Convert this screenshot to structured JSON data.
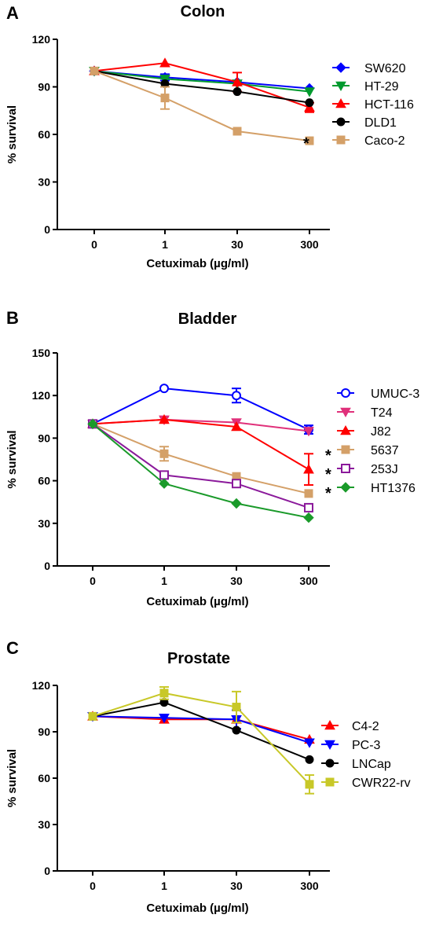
{
  "chart_data": [
    {
      "type": "line",
      "panel_label": "A",
      "title": "Colon",
      "xlabel": "Cetuximab (µg/ml)",
      "ylabel": "% survival",
      "categories": [
        "0",
        "1",
        "30",
        "300"
      ],
      "ylim": [
        0,
        120
      ],
      "yticks": [
        "0",
        "30",
        "60",
        "90",
        "120"
      ],
      "legend_position": "right",
      "series": [
        {
          "name": "SW620",
          "color": "#0000ff",
          "marker": "diamond",
          "values": [
            100,
            96,
            93,
            89
          ],
          "errors": [
            0,
            2,
            0,
            0
          ],
          "star": false
        },
        {
          "name": "HT-29",
          "color": "#009a2e",
          "marker": "triangle-down",
          "values": [
            100,
            95,
            92,
            87
          ],
          "errors": [
            0,
            0,
            0,
            0
          ],
          "star": false
        },
        {
          "name": "HCT-116",
          "color": "#ff0000",
          "marker": "triangle-up",
          "values": [
            100,
            105,
            93,
            77
          ],
          "errors": [
            0,
            0,
            6,
            3
          ],
          "star": false
        },
        {
          "name": "DLD1",
          "color": "#000000",
          "marker": "circle",
          "values": [
            100,
            92,
            87,
            80
          ],
          "errors": [
            0,
            0,
            0,
            0
          ],
          "star": false
        },
        {
          "name": "Caco-2",
          "color": "#d4a068",
          "marker": "square",
          "values": [
            100,
            83,
            62,
            56
          ],
          "errors": [
            0,
            7,
            0,
            0
          ],
          "star": true
        }
      ]
    },
    {
      "type": "line",
      "panel_label": "B",
      "title": "Bladder",
      "xlabel": "Cetuximab (µg/ml)",
      "ylabel": "% survival",
      "categories": [
        "0",
        "1",
        "30",
        "300"
      ],
      "ylim": [
        0,
        150
      ],
      "yticks": [
        "0",
        "30",
        "60",
        "90",
        "120",
        "150"
      ],
      "legend_position": "right",
      "series": [
        {
          "name": "UMUC-3",
          "color": "#0000ff",
          "marker": "circle-open",
          "values": [
            100,
            125,
            120,
            96
          ],
          "errors": [
            0,
            0,
            5,
            3
          ],
          "star": false
        },
        {
          "name": "T24",
          "color": "#e0307a",
          "marker": "triangle-down",
          "values": [
            100,
            103,
            101,
            95
          ],
          "errors": [
            0,
            2,
            0,
            0
          ],
          "star": false
        },
        {
          "name": "J82",
          "color": "#ff0000",
          "marker": "triangle-up",
          "values": [
            100,
            103,
            98,
            68
          ],
          "errors": [
            0,
            0,
            0,
            11
          ],
          "star": false
        },
        {
          "name": "5637",
          "color": "#d4a068",
          "marker": "square",
          "values": [
            100,
            79,
            63,
            51
          ],
          "errors": [
            0,
            5,
            0,
            0
          ],
          "star": true
        },
        {
          "name": "253J",
          "color": "#8b1a9b",
          "marker": "square-open",
          "values": [
            100,
            64,
            58,
            41
          ],
          "errors": [
            0,
            0,
            0,
            0
          ],
          "star": true
        },
        {
          "name": "HT1376",
          "color": "#1a9a2a",
          "marker": "diamond",
          "values": [
            100,
            58,
            44,
            34
          ],
          "errors": [
            0,
            0,
            0,
            0
          ],
          "star": true
        }
      ]
    },
    {
      "type": "line",
      "panel_label": "C",
      "title": "Prostate",
      "xlabel": "Cetuximab (µg/ml)",
      "ylabel": "% survival",
      "categories": [
        "0",
        "1",
        "30",
        "300"
      ],
      "ylim": [
        0,
        120
      ],
      "yticks": [
        "0",
        "30",
        "60",
        "90",
        "120"
      ],
      "legend_position": "right",
      "series": [
        {
          "name": "C4-2",
          "color": "#ff0000",
          "marker": "triangle-up",
          "values": [
            100,
            98,
            98,
            85
          ],
          "errors": [
            0,
            0,
            0,
            0
          ],
          "star": false
        },
        {
          "name": "PC-3",
          "color": "#0000ff",
          "marker": "triangle-down",
          "values": [
            100,
            99,
            98,
            83
          ],
          "errors": [
            0,
            0,
            6,
            0
          ],
          "star": false
        },
        {
          "name": "LNCap",
          "color": "#000000",
          "marker": "circle",
          "values": [
            100,
            109,
            91,
            72
          ],
          "errors": [
            0,
            0,
            0,
            0
          ],
          "star": false
        },
        {
          "name": "CWR22-rv",
          "color": "#c8c828",
          "marker": "square",
          "values": [
            100,
            115,
            106,
            56
          ],
          "errors": [
            0,
            4,
            10,
            6
          ],
          "star": false
        }
      ]
    }
  ]
}
